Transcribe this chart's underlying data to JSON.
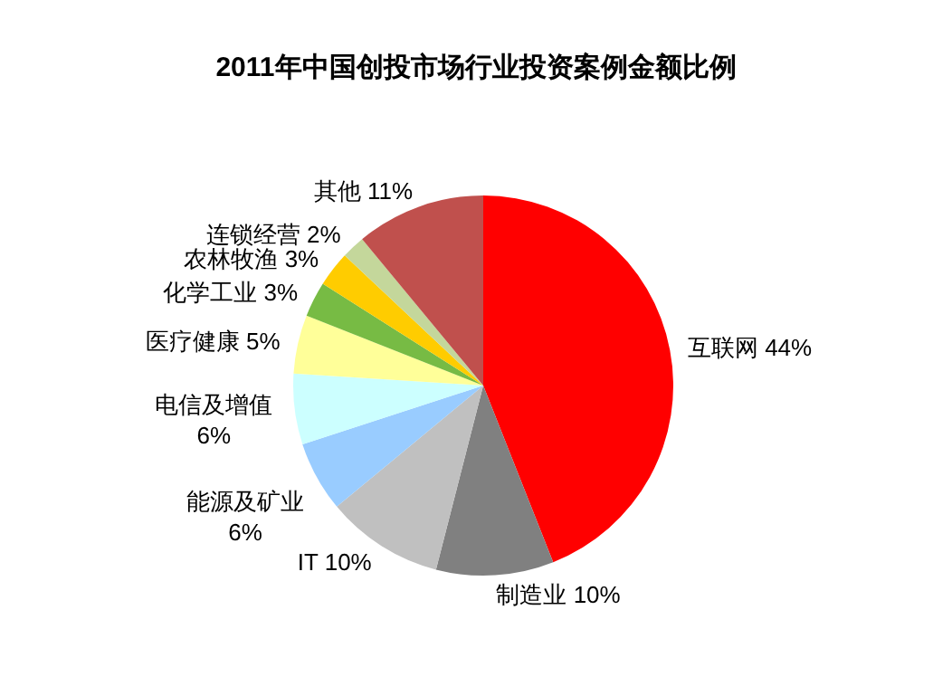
{
  "chart_data": {
    "type": "pie",
    "title": "2011年中国创投市场行业投资案例金额比例",
    "categories": [
      "互联网",
      "制造业",
      "IT",
      "能源及矿业",
      "电信及增值",
      "医疗健康",
      "化学工业",
      "农林牧渔",
      "连锁经营",
      "其他"
    ],
    "values": [
      44,
      10,
      10,
      6,
      6,
      5,
      3,
      3,
      2,
      11
    ],
    "value_labels": [
      "44%",
      "10%",
      "10%",
      "6%",
      "6%",
      "5%",
      "3%",
      "3%",
      "2%",
      "11%"
    ],
    "colors": [
      "#ff0000",
      "#808080",
      "#c0c0c0",
      "#99ccff",
      "#ccffff",
      "#ffff99",
      "#77bb44",
      "#ffcc00",
      "#c4d79b",
      "#c0504d"
    ]
  }
}
